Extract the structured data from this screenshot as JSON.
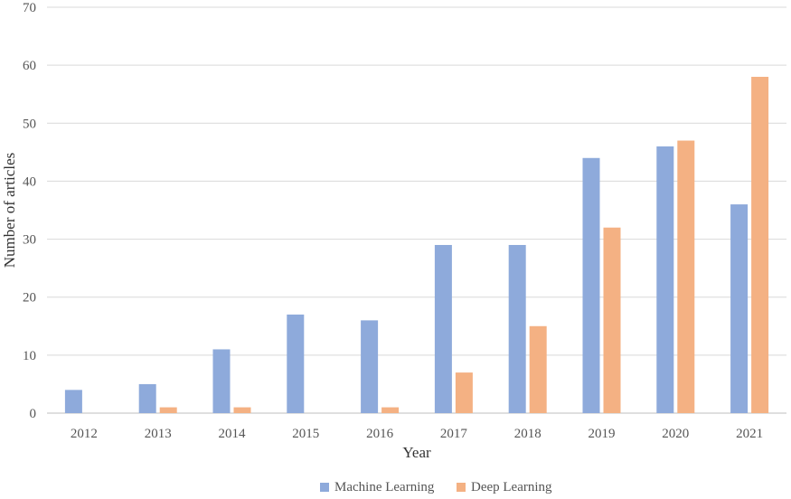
{
  "chart_data": {
    "type": "bar",
    "xlabel": "Year",
    "ylabel": "Number of articles",
    "ylim": [
      0,
      70
    ],
    "yticks": [
      0,
      10,
      20,
      30,
      40,
      50,
      60,
      70
    ],
    "grid": true,
    "legend_position": "bottom-center",
    "categories": [
      "2012",
      "2013",
      "2014",
      "2015",
      "2016",
      "2017",
      "2018",
      "2019",
      "2020",
      "2021"
    ],
    "series": [
      {
        "name": "Machine Learning",
        "color": "#8eaadb",
        "values": [
          4,
          5,
          11,
          17,
          16,
          29,
          29,
          44,
          46,
          36
        ]
      },
      {
        "name": "Deep Learning",
        "color": "#f4b183",
        "values": [
          0,
          1,
          1,
          0,
          1,
          7,
          15,
          32,
          47,
          58
        ]
      }
    ]
  }
}
